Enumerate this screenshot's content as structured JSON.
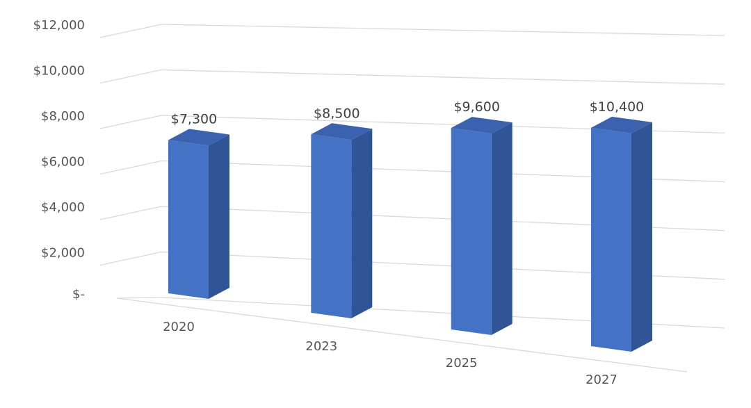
{
  "chart_data": {
    "type": "bar",
    "categories": [
      "2020",
      "2023",
      "2025",
      "2027"
    ],
    "values": [
      7300,
      8500,
      9600,
      10400
    ],
    "data_labels": [
      "$7,300",
      "$8,500",
      "$9,600",
      "$10,400"
    ],
    "title": "",
    "xlabel": "",
    "ylabel": "",
    "ylim": [
      0,
      12000
    ],
    "y_ticks": [
      0,
      2000,
      4000,
      6000,
      8000,
      10000,
      12000
    ],
    "y_tick_labels": [
      "$-",
      "$2,000",
      "$4,000",
      "$6,000",
      "$8,000",
      "$10,000",
      "$12,000"
    ],
    "grid": true,
    "legend": "none",
    "style": "3d-column",
    "colors": {
      "bar_front": "#4472C4",
      "bar_side": "#2F5597",
      "bar_top": "#3A62AE",
      "grid": "#D9D9D9",
      "text": "#595959"
    }
  }
}
